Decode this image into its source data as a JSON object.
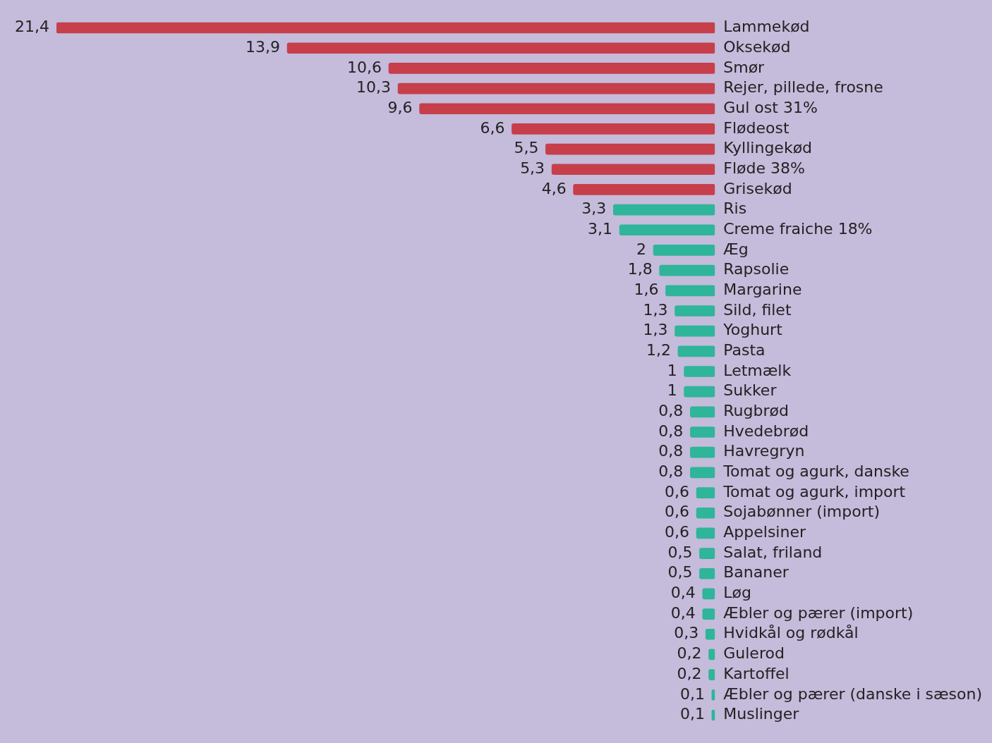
{
  "chart_data": {
    "type": "bar",
    "orientation": "horizontal",
    "categories": [
      "Lammekød",
      "Oksekød",
      "Smør",
      "Rejer, pillede, frosne",
      "Gul ost 31%",
      "Flødeost",
      "Kyllingekød",
      "Fløde 38%",
      "Grisekød",
      "Ris",
      "Creme fraiche 18%",
      "Æg",
      "Rapsolie",
      "Margarine",
      "Sild, filet",
      "Yoghurt",
      "Pasta",
      "Letmælk",
      "Sukker",
      "Rugbrød",
      "Hvedebrød",
      "Havregryn",
      "Tomat og agurk, danske",
      "Tomat og agurk, import",
      "Sojabønner (import)",
      "Appelsiner",
      "Salat, friland",
      "Bananer",
      "Løg",
      "Æbler og pærer (import)",
      "Hvidkål og rødkål",
      "Gulerod",
      "Kartoffel",
      "Æbler og pærer (danske i sæson)",
      "Muslinger"
    ],
    "values": [
      21.4,
      13.9,
      10.6,
      10.3,
      9.6,
      6.6,
      5.5,
      5.3,
      4.6,
      3.3,
      3.1,
      2,
      1.8,
      1.6,
      1.3,
      1.3,
      1.2,
      1,
      1,
      0.8,
      0.8,
      0.8,
      0.8,
      0.6,
      0.6,
      0.6,
      0.5,
      0.5,
      0.4,
      0.4,
      0.3,
      0.2,
      0.2,
      0.1,
      0.1
    ],
    "colors": [
      "#c63f4a",
      "#c63f4a",
      "#c63f4a",
      "#c63f4a",
      "#c63f4a",
      "#c63f4a",
      "#c63f4a",
      "#c63f4a",
      "#c63f4a",
      "#2eb59a",
      "#2eb59a",
      "#2eb59a",
      "#2eb59a",
      "#2eb59a",
      "#2eb59a",
      "#2eb59a",
      "#2eb59a",
      "#2eb59a",
      "#2eb59a",
      "#2eb59a",
      "#2eb59a",
      "#2eb59a",
      "#2eb59a",
      "#2eb59a",
      "#2eb59a",
      "#2eb59a",
      "#2eb59a",
      "#2eb59a",
      "#2eb59a",
      "#2eb59a",
      "#2eb59a",
      "#2eb59a",
      "#2eb59a",
      "#2eb59a",
      "#2eb59a"
    ],
    "value_labels": [
      "21,4",
      "13,9",
      "10,6",
      "10,3",
      "9,6",
      "6,6",
      "5,5",
      "5,3",
      "4,6",
      "3,3",
      "3,1",
      "2",
      "1,8",
      "1,6",
      "1,3",
      "1,3",
      "1,2",
      "1",
      "1",
      "0,8",
      "0,8",
      "0,8",
      "0,8",
      "0,6",
      "0,6",
      "0,6",
      "0,5",
      "0,5",
      "0,4",
      "0,4",
      "0,3",
      "0,2",
      "0,2",
      "0,1",
      "0,1"
    ],
    "xlim": [
      21.4,
      0
    ],
    "tick_labels": "y"
  }
}
